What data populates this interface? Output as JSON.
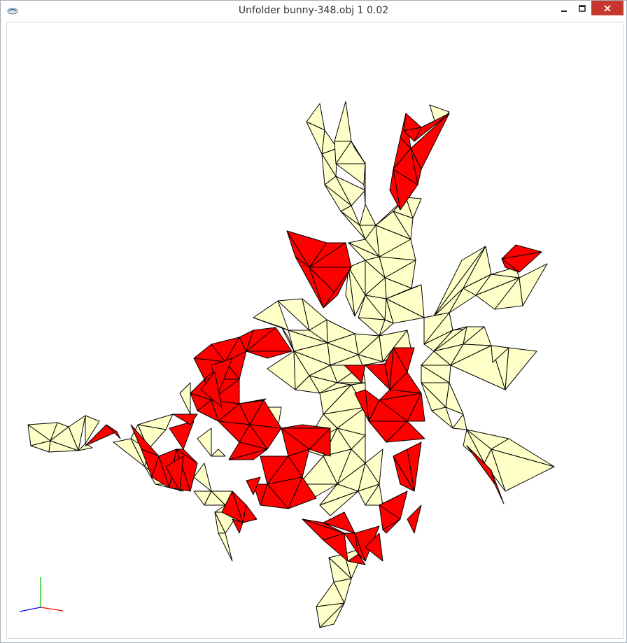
{
  "window": {
    "title": "Unfolder bunny-348.obj 1 0.02"
  },
  "icons": {
    "app": "app-icon",
    "minimize": "minimize-icon",
    "maximize": "maximize-icon",
    "close": "close-icon",
    "axes": "axes-gizmo-icon"
  },
  "colors": {
    "face_normal": "#ffffc8",
    "face_overlap": "#ff0000",
    "edge": "#000000",
    "close_button": "#c7372e",
    "axis_x": "#ff0000",
    "axis_y": "#00c000",
    "axis_z": "#0000ff"
  }
}
